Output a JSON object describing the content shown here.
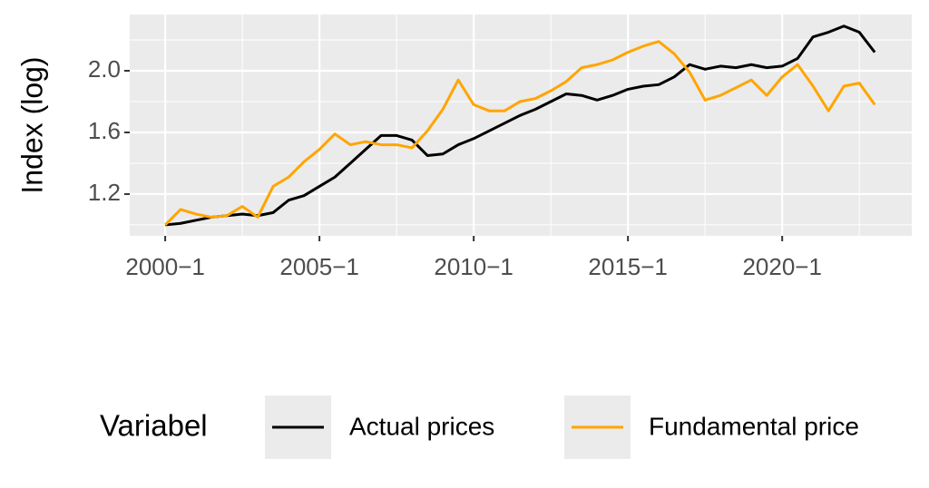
{
  "chart_data": {
    "type": "line",
    "y_label": "Index (log)",
    "legend_title": "Variabel",
    "x": [
      2000,
      2000.5,
      2001,
      2001.5,
      2002,
      2002.5,
      2003,
      2003.5,
      2004,
      2004.5,
      2005,
      2005.5,
      2006,
      2006.5,
      2007,
      2007.5,
      2008,
      2008.5,
      2009,
      2009.5,
      2010,
      2010.5,
      2011,
      2011.5,
      2012,
      2012.5,
      2013,
      2013.5,
      2014,
      2014.5,
      2015,
      2015.5,
      2016,
      2016.5,
      2017,
      2017.5,
      2018,
      2018.5,
      2019,
      2019.5,
      2020,
      2020.5,
      2021,
      2021.5,
      2022,
      2022.5,
      2023
    ],
    "series": [
      {
        "name": "Actual prices",
        "color": "#000000",
        "values": [
          1.0,
          1.01,
          1.03,
          1.05,
          1.06,
          1.07,
          1.06,
          1.08,
          1.16,
          1.19,
          1.25,
          1.31,
          1.4,
          1.49,
          1.58,
          1.58,
          1.55,
          1.45,
          1.46,
          1.52,
          1.56,
          1.61,
          1.66,
          1.71,
          1.75,
          1.8,
          1.85,
          1.84,
          1.81,
          1.84,
          1.88,
          1.9,
          1.91,
          1.96,
          2.04,
          2.01,
          2.03,
          2.02,
          2.04,
          2.02,
          2.03,
          2.08,
          2.22,
          2.25,
          2.29,
          2.25,
          2.12
        ]
      },
      {
        "name": "Fundamental price",
        "color": "#FFA500",
        "values": [
          1.0,
          1.1,
          1.07,
          1.05,
          1.06,
          1.12,
          1.05,
          1.25,
          1.31,
          1.41,
          1.49,
          1.59,
          1.52,
          1.54,
          1.52,
          1.52,
          1.5,
          1.61,
          1.75,
          1.94,
          1.78,
          1.74,
          1.74,
          1.8,
          1.82,
          1.87,
          1.93,
          2.02,
          2.04,
          2.07,
          2.12,
          2.16,
          2.19,
          2.11,
          1.99,
          1.81,
          1.84,
          1.89,
          1.94,
          1.84,
          1.96,
          2.04,
          1.9,
          1.74,
          1.9,
          1.92,
          1.78
        ]
      }
    ],
    "xlim": [
      1998.85,
      2024.2
    ],
    "ylim": [
      0.929,
      2.365
    ],
    "xticks": [
      {
        "value": 2000,
        "label": "2000−1"
      },
      {
        "value": 2005,
        "label": "2005−1"
      },
      {
        "value": 2010,
        "label": "2010−1"
      },
      {
        "value": 2015,
        "label": "2015−1"
      },
      {
        "value": 2020,
        "label": "2020−1"
      }
    ],
    "yticks": [
      1.2,
      1.6,
      {
        "value": 2,
        "label": "2.0"
      }
    ],
    "grid": true,
    "legend": "bottom"
  }
}
